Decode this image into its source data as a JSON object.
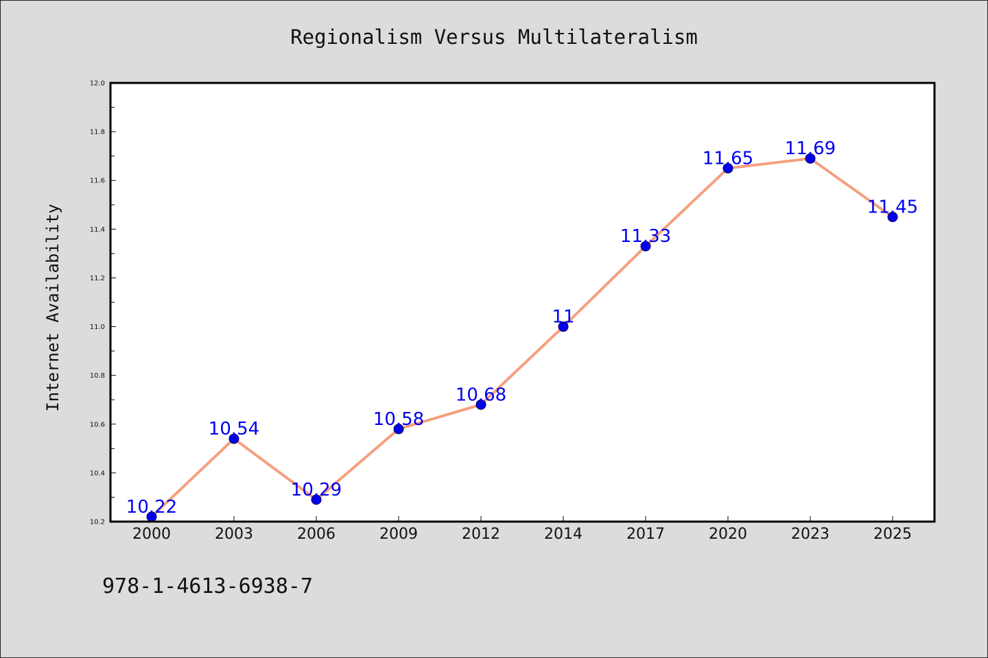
{
  "chart_data": {
    "type": "line",
    "title": "Regionalism Versus Multilateralism",
    "xlabel": "",
    "ylabel": "Internet Availability",
    "categories": [
      "2000",
      "2003",
      "2006",
      "2009",
      "2012",
      "2014",
      "2017",
      "2020",
      "2023",
      "2025"
    ],
    "series": [
      {
        "values": [
          10.22,
          10.54,
          10.29,
          10.58,
          10.68,
          11,
          11.33,
          11.65,
          11.69,
          11.45
        ],
        "labels": [
          "10.22",
          "10.54",
          "10.29",
          "10.58",
          "10.68",
          "11",
          "11.33",
          "11.65",
          "11.69",
          "11.45"
        ],
        "line_color": "#f4a07e",
        "marker_color": "#0000ee"
      }
    ],
    "ylim": [
      10.2,
      12.0
    ],
    "yticks": [
      "10.2",
      "10.4",
      "10.6",
      "10.8",
      "11.0",
      "11.2",
      "11.4",
      "11.6",
      "11.8",
      "12.0"
    ],
    "grid": false,
    "label_color": "#0000ee"
  },
  "footer": {
    "isbn": "978-1-4613-6938-7"
  },
  "colors": {
    "background": "#dcdcdc",
    "plot_background": "#ffffff"
  }
}
